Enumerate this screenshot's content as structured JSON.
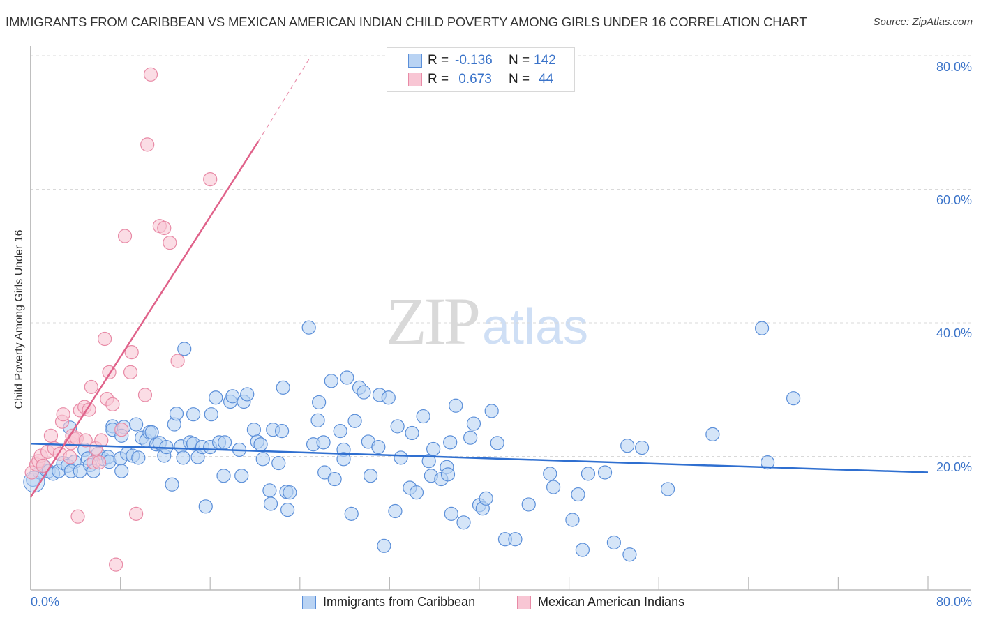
{
  "header": {
    "title": "IMMIGRANTS FROM CARIBBEAN VS MEXICAN AMERICAN INDIAN CHILD POVERTY AMONG GIRLS UNDER 16 CORRELATION CHART",
    "source": "Source: ZipAtlas.com"
  },
  "watermark": {
    "zip": "ZIP",
    "atlas": "atlas"
  },
  "stats": {
    "rows": [
      {
        "r_label": "R =",
        "r_value": "-0.136",
        "n_label": "N =",
        "n_value": "142"
      },
      {
        "r_label": "R =",
        "r_value": " 0.673",
        "n_label": "N =",
        "n_value": "44"
      }
    ]
  },
  "legend": {
    "items": [
      {
        "label": "Immigrants from Caribbean"
      },
      {
        "label": "Mexican American Indians"
      }
    ]
  },
  "axes": {
    "ylabel": "Child Poverty Among Girls Under 16",
    "y_ticks": [
      "80.0%",
      "60.0%",
      "40.0%",
      "20.0%"
    ],
    "x_tick_left": "0.0%",
    "x_tick_right": "80.0%"
  },
  "colors": {
    "blue_fill": "#b9d3f3",
    "blue_stroke": "#5b8fd9",
    "blue_line": "#2f6fd0",
    "pink_fill": "#f8c6d4",
    "pink_stroke": "#e88aa6",
    "pink_line": "#e0628a",
    "tick_text": "#3a73c9",
    "grid": "#d9d9d9"
  },
  "chart_data": {
    "type": "scatter",
    "title": "IMMIGRANTS FROM CARIBBEAN VS MEXICAN AMERICAN INDIAN CHILD POVERTY AMONG GIRLS UNDER 16 CORRELATION CHART",
    "xlabel": "",
    "ylabel": "Child Poverty Among Girls Under 16",
    "xlim": [
      0,
      80
    ],
    "ylim": [
      0,
      80
    ],
    "x_ticks": [
      0,
      80
    ],
    "y_ticks": [
      20,
      40,
      60,
      80
    ],
    "grid": true,
    "legend_position": "bottom",
    "series": [
      {
        "name": "Immigrants from Caribbean",
        "R": -0.136,
        "N": 142,
        "trend": {
          "x0": 0,
          "y0": 21.9,
          "x1": 80,
          "y1": 17.6
        },
        "points": [
          [
            0.2,
            16.5
          ],
          [
            0.8,
            17.6
          ],
          [
            1.2,
            18.5
          ],
          [
            1.6,
            17.8
          ],
          [
            2.0,
            17.4
          ],
          [
            2.5,
            17.8
          ],
          [
            2.9,
            19.0
          ],
          [
            3.3,
            18.6
          ],
          [
            3.5,
            24.3
          ],
          [
            3.9,
            19.2
          ],
          [
            3.6,
            17.8
          ],
          [
            4.4,
            17.8
          ],
          [
            4.8,
            21.0
          ],
          [
            5.1,
            19.7
          ],
          [
            5.3,
            18.7
          ],
          [
            5.6,
            17.8
          ],
          [
            6.0,
            20.4
          ],
          [
            6.5,
            19.6
          ],
          [
            6.9,
            19.9
          ],
          [
            7.3,
            24.5
          ],
          [
            7.0,
            19.2
          ],
          [
            8.0,
            19.7
          ],
          [
            7.3,
            24.0
          ],
          [
            8.1,
            17.8
          ],
          [
            8.3,
            24.4
          ],
          [
            8.1,
            23.1
          ],
          [
            8.6,
            20.4
          ],
          [
            9.1,
            20.1
          ],
          [
            9.6,
            19.8
          ],
          [
            9.9,
            22.8
          ],
          [
            9.4,
            24.8
          ],
          [
            10.3,
            22.4
          ],
          [
            10.6,
            23.6
          ],
          [
            10.8,
            23.6
          ],
          [
            11.2,
            21.8
          ],
          [
            11.5,
            22.0
          ],
          [
            11.9,
            20.1
          ],
          [
            12.1,
            21.4
          ],
          [
            12.6,
            15.8
          ],
          [
            12.8,
            24.8
          ],
          [
            13.0,
            26.4
          ],
          [
            13.4,
            21.5
          ],
          [
            13.6,
            19.8
          ],
          [
            13.7,
            36.1
          ],
          [
            14.2,
            22.1
          ],
          [
            14.5,
            21.9
          ],
          [
            14.5,
            26.3
          ],
          [
            14.9,
            19.9
          ],
          [
            15.3,
            21.4
          ],
          [
            15.6,
            12.5
          ],
          [
            16.0,
            21.4
          ],
          [
            16.1,
            26.3
          ],
          [
            16.5,
            28.8
          ],
          [
            16.8,
            22.1
          ],
          [
            17.3,
            22.1
          ],
          [
            17.2,
            17.1
          ],
          [
            17.8,
            28.2
          ],
          [
            18.0,
            29.0
          ],
          [
            18.6,
            21.0
          ],
          [
            18.8,
            17.1
          ],
          [
            19.0,
            28.2
          ],
          [
            19.3,
            29.3
          ],
          [
            19.9,
            24.0
          ],
          [
            20.2,
            22.2
          ],
          [
            20.7,
            19.6
          ],
          [
            20.5,
            21.8
          ],
          [
            21.3,
            14.9
          ],
          [
            21.4,
            12.9
          ],
          [
            21.6,
            24.0
          ],
          [
            22.1,
            19.0
          ],
          [
            22.5,
            30.3
          ],
          [
            22.4,
            23.8
          ],
          [
            22.8,
            14.7
          ],
          [
            22.9,
            12.0
          ],
          [
            23.1,
            14.6
          ],
          [
            24.8,
            39.3
          ],
          [
            25.2,
            21.8
          ],
          [
            25.6,
            25.4
          ],
          [
            25.7,
            28.1
          ],
          [
            26.1,
            22.1
          ],
          [
            26.2,
            17.6
          ],
          [
            26.8,
            31.3
          ],
          [
            27.1,
            16.6
          ],
          [
            27.6,
            23.8
          ],
          [
            27.9,
            21.0
          ],
          [
            27.9,
            19.6
          ],
          [
            28.2,
            31.8
          ],
          [
            28.6,
            11.4
          ],
          [
            28.9,
            25.3
          ],
          [
            29.3,
            30.3
          ],
          [
            29.7,
            29.6
          ],
          [
            30.1,
            22.2
          ],
          [
            30.3,
            17.1
          ],
          [
            31.1,
            29.2
          ],
          [
            31.0,
            21.4
          ],
          [
            31.5,
            6.6
          ],
          [
            31.9,
            28.8
          ],
          [
            32.5,
            11.8
          ],
          [
            32.7,
            24.5
          ],
          [
            33.0,
            19.8
          ],
          [
            33.8,
            15.3
          ],
          [
            34.0,
            23.5
          ],
          [
            34.4,
            14.6
          ],
          [
            35.0,
            26.0
          ],
          [
            35.5,
            19.3
          ],
          [
            35.7,
            17.1
          ],
          [
            35.9,
            21.1
          ],
          [
            36.6,
            16.6
          ],
          [
            37.1,
            18.4
          ],
          [
            37.2,
            17.3
          ],
          [
            37.4,
            22.1
          ],
          [
            37.5,
            11.4
          ],
          [
            37.9,
            27.6
          ],
          [
            38.6,
            10.1
          ],
          [
            39.2,
            22.8
          ],
          [
            39.5,
            24.9
          ],
          [
            40.0,
            12.7
          ],
          [
            40.3,
            12.2
          ],
          [
            40.6,
            13.7
          ],
          [
            41.1,
            26.8
          ],
          [
            41.6,
            22.0
          ],
          [
            42.3,
            7.6
          ],
          [
            43.2,
            7.6
          ],
          [
            44.4,
            12.8
          ],
          [
            46.3,
            17.4
          ],
          [
            46.6,
            15.4
          ],
          [
            48.3,
            10.5
          ],
          [
            48.8,
            14.3
          ],
          [
            49.2,
            6.0
          ],
          [
            49.7,
            17.4
          ],
          [
            51.2,
            17.6
          ],
          [
            52.0,
            7.1
          ],
          [
            53.2,
            21.6
          ],
          [
            53.4,
            5.3
          ],
          [
            54.5,
            21.3
          ],
          [
            56.8,
            15.1
          ],
          [
            60.8,
            23.3
          ],
          [
            65.2,
            39.2
          ],
          [
            65.7,
            19.1
          ],
          [
            68.0,
            28.7
          ]
        ]
      },
      {
        "name": "Mexican American Indians",
        "R": 0.673,
        "N": 44,
        "trend": {
          "x0": 0,
          "y0": 13.9,
          "x1": 20.3,
          "y1": 67.2,
          "dashed_to_x": 25.0,
          "dashed_to_y": 80.0
        },
        "points": [
          [
            0.1,
            17.6
          ],
          [
            0.5,
            18.8
          ],
          [
            0.7,
            19.3
          ],
          [
            0.9,
            20.1
          ],
          [
            1.1,
            18.6
          ],
          [
            1.5,
            20.7
          ],
          [
            1.8,
            23.1
          ],
          [
            2.1,
            21.2
          ],
          [
            2.6,
            20.4
          ],
          [
            2.8,
            25.2
          ],
          [
            2.9,
            26.3
          ],
          [
            3.5,
            19.9
          ],
          [
            3.6,
            22.0
          ],
          [
            3.7,
            23.1
          ],
          [
            3.9,
            22.6
          ],
          [
            4.1,
            22.7
          ],
          [
            4.2,
            11.0
          ],
          [
            4.4,
            26.9
          ],
          [
            4.8,
            27.4
          ],
          [
            4.9,
            22.4
          ],
          [
            5.2,
            27.0
          ],
          [
            5.4,
            30.4
          ],
          [
            5.6,
            19.1
          ],
          [
            5.8,
            21.2
          ],
          [
            6.1,
            19.1
          ],
          [
            6.3,
            22.4
          ],
          [
            6.6,
            37.6
          ],
          [
            6.8,
            28.6
          ],
          [
            7.0,
            32.6
          ],
          [
            7.3,
            27.8
          ],
          [
            7.6,
            3.8
          ],
          [
            8.1,
            24.0
          ],
          [
            8.4,
            53.0
          ],
          [
            8.9,
            32.6
          ],
          [
            9.0,
            35.6
          ],
          [
            9.4,
            11.4
          ],
          [
            10.2,
            29.2
          ],
          [
            10.4,
            66.7
          ],
          [
            10.7,
            77.2
          ],
          [
            11.5,
            54.5
          ],
          [
            11.9,
            54.2
          ],
          [
            12.4,
            52.0
          ],
          [
            13.1,
            34.3
          ],
          [
            16.0,
            61.5
          ]
        ]
      }
    ]
  }
}
